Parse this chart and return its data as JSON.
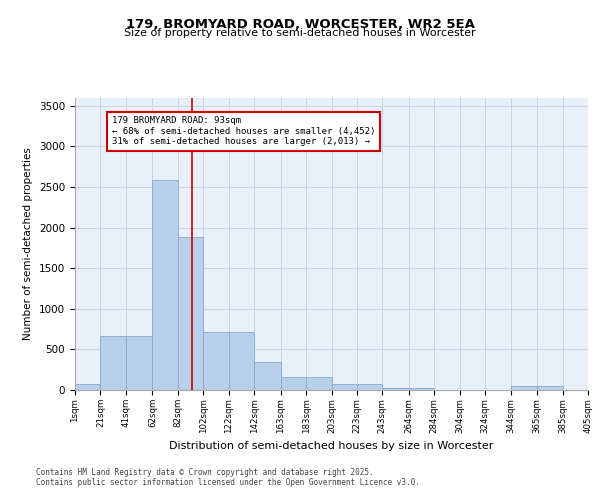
{
  "title1": "179, BROMYARD ROAD, WORCESTER, WR2 5EA",
  "title2": "Size of property relative to semi-detached houses in Worcester",
  "xlabel": "Distribution of semi-detached houses by size in Worcester",
  "ylabel": "Number of semi-detached properties",
  "annotation_line1": "179 BROMYARD ROAD: 93sqm",
  "annotation_line2": "← 68% of semi-detached houses are smaller (4,452)",
  "annotation_line3": "31% of semi-detached houses are larger (2,013) →",
  "footer1": "Contains HM Land Registry data © Crown copyright and database right 2025.",
  "footer2": "Contains public sector information licensed under the Open Government Licence v3.0.",
  "bins": [
    1,
    21,
    41,
    62,
    82,
    102,
    122,
    142,
    163,
    183,
    203,
    223,
    243,
    264,
    284,
    304,
    324,
    344,
    365,
    385,
    405
  ],
  "counts": [
    80,
    670,
    670,
    2580,
    1880,
    720,
    720,
    350,
    160,
    160,
    70,
    70,
    20,
    20,
    0,
    0,
    0,
    50,
    50,
    0
  ],
  "bar_color": "#b8d0ea",
  "bar_edge_color": "#88aacc",
  "vline_x": 93,
  "vline_color": "#cc0000",
  "annotation_box_color": "#cc0000",
  "grid_color": "#c8d4e8",
  "background_color": "#eaf0fa",
  "ylim": [
    0,
    3600
  ],
  "yticks": [
    0,
    500,
    1000,
    1500,
    2000,
    2500,
    3000,
    3500
  ],
  "tick_labels": [
    "1sqm",
    "21sqm",
    "41sqm",
    "62sqm",
    "82sqm",
    "102sqm",
    "122sqm",
    "142sqm",
    "163sqm",
    "183sqm",
    "203sqm",
    "223sqm",
    "243sqm",
    "264sqm",
    "284sqm",
    "304sqm",
    "324sqm",
    "344sqm",
    "365sqm",
    "385sqm",
    "405sqm"
  ]
}
